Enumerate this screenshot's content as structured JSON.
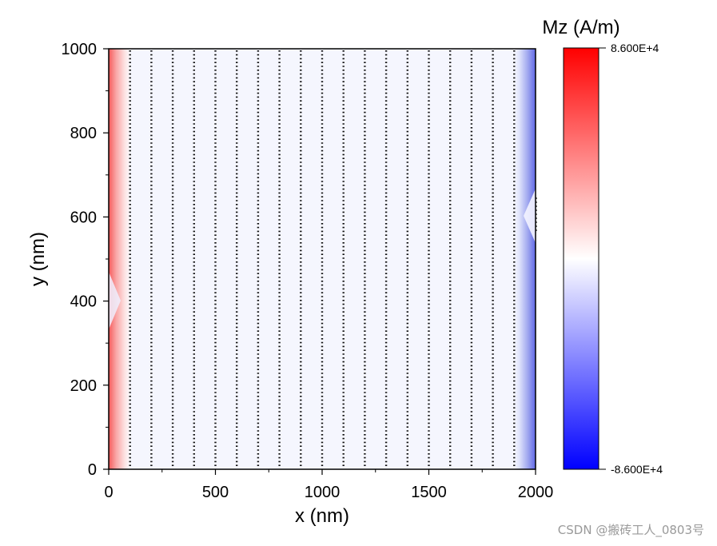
{
  "chart_data": {
    "type": "heatmap",
    "title": "",
    "xlabel": "x (nm)",
    "ylabel": "y (nm)",
    "xlim": [
      0,
      2000
    ],
    "ylim": [
      0,
      1000
    ],
    "x_ticks": [
      0,
      500,
      1000,
      1500,
      2000
    ],
    "y_ticks": [
      0,
      200,
      400,
      600,
      800,
      1000
    ],
    "x_tick_labels": [
      "0",
      "500",
      "1000",
      "1500",
      "2000"
    ],
    "y_tick_labels": [
      "0",
      "200",
      "400",
      "600",
      "800",
      "1000"
    ],
    "colorbar": {
      "title": "Mz (A/m)",
      "max": 86000,
      "min": -86000,
      "max_label": "8.600E+4",
      "min_label": "-8.600E+4",
      "colors": {
        "high": "#ff0000",
        "mid": "#ffffff",
        "low": "#0000ff"
      }
    },
    "field": {
      "left_edge_mz": 86000,
      "right_edge_mz": -86000,
      "edge_decay_nm": 100,
      "interior_mz": -3000,
      "left_notch_y_nm": 400,
      "right_notch_y_nm": 600
    },
    "vector_columns_x_nm": [
      100,
      200,
      300,
      400,
      500,
      600,
      700,
      800,
      900,
      1000,
      1100,
      1200,
      1300,
      1400,
      1500,
      1600,
      1700,
      1800,
      1900
    ]
  },
  "watermark": "CSDN @搬砖工人_0803号"
}
